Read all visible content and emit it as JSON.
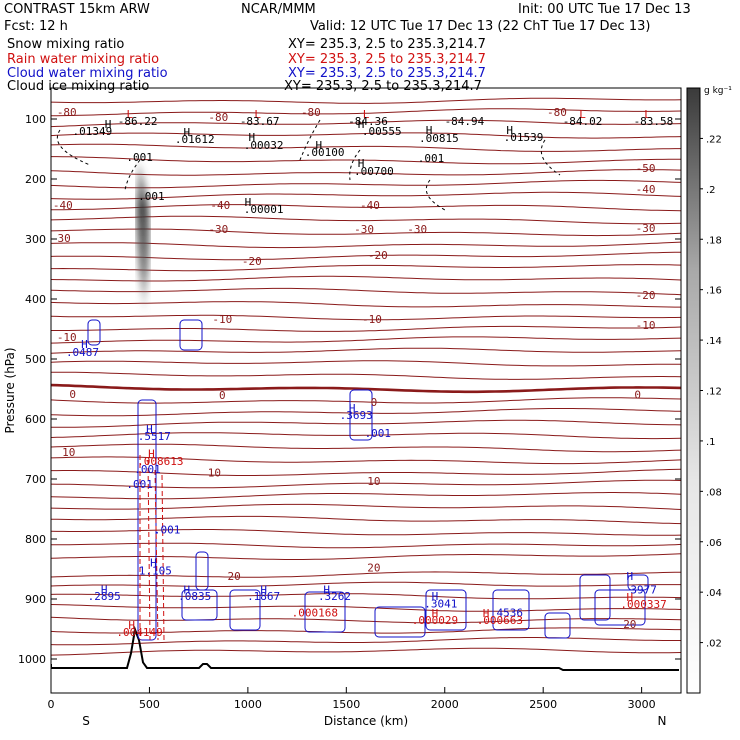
{
  "header": {
    "model": "CONTRAST 15km ARW",
    "org": "NCAR/MMM",
    "init": "Init: 00 UTC Tue 17 Dec 13",
    "fcst": "Fcst:   12 h",
    "valid": "Valid: 12 UTC Tue 17 Dec 13 (22 ChT Tue 17 Dec 13)",
    "fields": [
      {
        "name": "Snow mixing ratio",
        "xy": "XY= 235.3,   2.5 to 235.3,214.7",
        "color": "#000000"
      },
      {
        "name": "Rain water mixing ratio",
        "xy": "XY= 235.3,   2.5 to 235.3,214.7",
        "color": "#d01010"
      },
      {
        "name": "Cloud water mixing ratio",
        "xy": "XY= 235.3,   2.5 to 235.3,214.7",
        "color": "#1010c8"
      },
      {
        "name": "Cloud ice mixing ratio",
        "xy": "XY= 235.3,   2.5 to 235.3,214.7",
        "color": "#000000"
      }
    ]
  },
  "chart_data": {
    "type": "cross-section",
    "title": "CONTRAST 15km ARW cross section",
    "xlabel": "Distance (km)",
    "ylabel": "Pressure (hPa)",
    "xlim": [
      0,
      3200
    ],
    "ylim": [
      1050,
      50
    ],
    "x_ticks": [
      0,
      500,
      1000,
      1500,
      2000,
      2500,
      3000
    ],
    "y_ticks": [
      100,
      200,
      300,
      400,
      500,
      600,
      700,
      800,
      900,
      1000
    ],
    "x_end_labels": {
      "left": "S",
      "right": "N"
    },
    "colorbar": {
      "label": "g kg⁻¹",
      "ticks": [
        ".02",
        ".04",
        ".06",
        ".08",
        ".1",
        ".12",
        ".14",
        ".16",
        ".18",
        ".2",
        ".22"
      ],
      "min": 0,
      "max": 0.24
    },
    "temperature_labels": [
      {
        "x": 80,
        "p": 95,
        "text": "-80"
      },
      {
        "x": 850,
        "p": 103,
        "text": "-80"
      },
      {
        "x": 1320,
        "p": 95,
        "text": "-80"
      },
      {
        "x": 2570,
        "p": 95,
        "text": "-80"
      },
      {
        "x": 3020,
        "p": 188,
        "text": "-50"
      },
      {
        "x": 3020,
        "p": 223,
        "text": "-40"
      },
      {
        "x": 3020,
        "p": 288,
        "text": "-30"
      },
      {
        "x": 3020,
        "p": 400,
        "text": "-20"
      },
      {
        "x": 3020,
        "p": 450,
        "text": "-10"
      },
      {
        "x": 60,
        "p": 250,
        "text": "-40"
      },
      {
        "x": 860,
        "p": 250,
        "text": "-40"
      },
      {
        "x": 1620,
        "p": 250,
        "text": "-40"
      },
      {
        "x": 50,
        "p": 305,
        "text": "-30"
      },
      {
        "x": 850,
        "p": 290,
        "text": "-30"
      },
      {
        "x": 1590,
        "p": 290,
        "text": "-30"
      },
      {
        "x": 1860,
        "p": 290,
        "text": "-30"
      },
      {
        "x": 1020,
        "p": 343,
        "text": "-20"
      },
      {
        "x": 1660,
        "p": 333,
        "text": "-20"
      },
      {
        "x": 80,
        "p": 470,
        "text": "-10"
      },
      {
        "x": 870,
        "p": 440,
        "text": "-10"
      },
      {
        "x": 1630,
        "p": 440,
        "text": "-10"
      },
      {
        "x": 110,
        "p": 565,
        "text": "0"
      },
      {
        "x": 870,
        "p": 567,
        "text": "0"
      },
      {
        "x": 1640,
        "p": 578,
        "text": "0"
      },
      {
        "x": 2980,
        "p": 566,
        "text": "0"
      },
      {
        "x": 90,
        "p": 662,
        "text": "10"
      },
      {
        "x": 830,
        "p": 696,
        "text": "10"
      },
      {
        "x": 1640,
        "p": 710,
        "text": "10"
      },
      {
        "x": 930,
        "p": 868,
        "text": "20"
      },
      {
        "x": 1640,
        "p": 854,
        "text": "20"
      },
      {
        "x": 2940,
        "p": 948,
        "text": "20"
      }
    ],
    "extrema_labels": [
      {
        "x": 400,
        "p": 98,
        "text": "L",
        "color": "#d01010"
      },
      {
        "x": 1050,
        "p": 98,
        "text": "L",
        "color": "#d01010"
      },
      {
        "x": 1600,
        "p": 98,
        "text": "L",
        "color": "#d01010"
      },
      {
        "x": 2700,
        "p": 98,
        "text": "L",
        "color": "#d01010"
      },
      {
        "x": 3030,
        "p": 98,
        "text": "L",
        "color": "#d01010"
      },
      {
        "x": 440,
        "p": 110,
        "text": "-86.22",
        "color": "#000000"
      },
      {
        "x": 1060,
        "p": 110,
        "text": "-83.67",
        "color": "#000000"
      },
      {
        "x": 1610,
        "p": 110,
        "text": "-84.36",
        "color": "#000000"
      },
      {
        "x": 2100,
        "p": 110,
        "text": "-84.94",
        "color": "#000000"
      },
      {
        "x": 2700,
        "p": 110,
        "text": "-84.02",
        "color": "#000000"
      },
      {
        "x": 3060,
        "p": 110,
        "text": "-83.58",
        "color": "#000000"
      },
      {
        "x": 290,
        "p": 115,
        "text": "H",
        "color": "#000000"
      },
      {
        "x": 210,
        "p": 127,
        "text": ".01349",
        "color": "#000000"
      },
      {
        "x": 690,
        "p": 128,
        "text": "H",
        "color": "#000000"
      },
      {
        "x": 730,
        "p": 140,
        "text": ".01612",
        "color": "#000000"
      },
      {
        "x": 1020,
        "p": 137,
        "text": "H",
        "color": "#000000"
      },
      {
        "x": 1080,
        "p": 150,
        "text": ".00032",
        "color": "#000000"
      },
      {
        "x": 1360,
        "p": 150,
        "text": "H",
        "color": "#000000"
      },
      {
        "x": 1390,
        "p": 162,
        "text": ".00100",
        "color": "#000000"
      },
      {
        "x": 1575,
        "p": 115,
        "text": "H",
        "color": "#000000"
      },
      {
        "x": 1680,
        "p": 127,
        "text": ".00555",
        "color": "#000000"
      },
      {
        "x": 1920,
        "p": 125,
        "text": "H",
        "color": "#000000"
      },
      {
        "x": 1970,
        "p": 138,
        "text": ".00815",
        "color": "#000000"
      },
      {
        "x": 2330,
        "p": 125,
        "text": "H",
        "color": "#000000"
      },
      {
        "x": 2400,
        "p": 137,
        "text": ".01539",
        "color": "#000000"
      },
      {
        "x": 1575,
        "p": 180,
        "text": "H",
        "color": "#000000"
      },
      {
        "x": 1640,
        "p": 193,
        "text": ".00700",
        "color": "#000000"
      },
      {
        "x": 1000,
        "p": 245,
        "text": "H",
        "color": "#000000"
      },
      {
        "x": 1080,
        "p": 257,
        "text": ".00001",
        "color": "#000000"
      },
      {
        "x": 450,
        "p": 170,
        "text": ".001",
        "color": "#000000"
      },
      {
        "x": 510,
        "p": 235,
        "text": ".001",
        "color": "#000000"
      },
      {
        "x": 1930,
        "p": 172,
        "text": ".001",
        "color": "#000000"
      },
      {
        "x": 170,
        "p": 482,
        "text": "H",
        "color": "#1010c8"
      },
      {
        "x": 160,
        "p": 495,
        "text": ".0487",
        "color": "#1010c8"
      },
      {
        "x": 1530,
        "p": 588,
        "text": "H",
        "color": "#1010c8"
      },
      {
        "x": 1550,
        "p": 600,
        "text": ".3693",
        "color": "#1010c8"
      },
      {
        "x": 1660,
        "p": 630,
        "text": ".001",
        "color": "#1010c8"
      },
      {
        "x": 500,
        "p": 623,
        "text": "H",
        "color": "#1010c8"
      },
      {
        "x": 525,
        "p": 635,
        "text": ".5517",
        "color": "#1010c8"
      },
      {
        "x": 510,
        "p": 664,
        "text": "H",
        "color": "#d01010"
      },
      {
        "x": 555,
        "p": 677,
        "text": ".008613",
        "color": "#d01010"
      },
      {
        "x": 490,
        "p": 690,
        "text": ".001",
        "color": "#1010c8"
      },
      {
        "x": 450,
        "p": 715,
        "text": ".001",
        "color": "#1010c8"
      },
      {
        "x": 590,
        "p": 791,
        "text": ".001",
        "color": "#1010c8"
      },
      {
        "x": 520,
        "p": 846,
        "text": "H",
        "color": "#1010c8"
      },
      {
        "x": 530,
        "p": 859,
        "text": "1.105",
        "color": "#1010c8"
      },
      {
        "x": 270,
        "p": 891,
        "text": "H",
        "color": "#1010c8"
      },
      {
        "x": 270,
        "p": 902,
        "text": ".2895",
        "color": "#1010c8"
      },
      {
        "x": 690,
        "p": 891,
        "text": "H",
        "color": "#1010c8"
      },
      {
        "x": 730,
        "p": 902,
        "text": ".0835",
        "color": "#1010c8"
      },
      {
        "x": 1080,
        "p": 891,
        "text": "H",
        "color": "#1010c8"
      },
      {
        "x": 1080,
        "p": 902,
        "text": ".1867",
        "color": "#1010c8"
      },
      {
        "x": 1400,
        "p": 891,
        "text": "H",
        "color": "#1010c8"
      },
      {
        "x": 1440,
        "p": 902,
        "text": ".3262",
        "color": "#1010c8"
      },
      {
        "x": 1340,
        "p": 929,
        "text": ".000168",
        "color": "#d01010"
      },
      {
        "x": 1950,
        "p": 902,
        "text": "H",
        "color": "#1010c8"
      },
      {
        "x": 1980,
        "p": 914,
        "text": ".3041",
        "color": "#1010c8"
      },
      {
        "x": 1950,
        "p": 930,
        "text": "H",
        "color": "#d01010"
      },
      {
        "x": 1950,
        "p": 942,
        "text": ".000029",
        "color": "#d01010"
      },
      {
        "x": 2210,
        "p": 930,
        "text": "H",
        "color": "#d01010"
      },
      {
        "x": 2330,
        "p": 929,
        "text": "4536",
        "color": "#1010c8"
      },
      {
        "x": 2280,
        "p": 942,
        "text": ".000663",
        "color": "#d01010"
      },
      {
        "x": 2940,
        "p": 868,
        "text": "H",
        "color": "#1010c8"
      },
      {
        "x": 3010,
        "p": 891,
        "text": "3977",
        "color": "#1010c8"
      },
      {
        "x": 2940,
        "p": 903,
        "text": "H",
        "color": "#d01010"
      },
      {
        "x": 3010,
        "p": 915,
        "text": ".000337",
        "color": "#d01010"
      },
      {
        "x": 410,
        "p": 950,
        "text": "H",
        "color": "#d01010"
      },
      {
        "x": 450,
        "p": 962,
        "text": ".004149",
        "color": "#d01010"
      }
    ]
  }
}
